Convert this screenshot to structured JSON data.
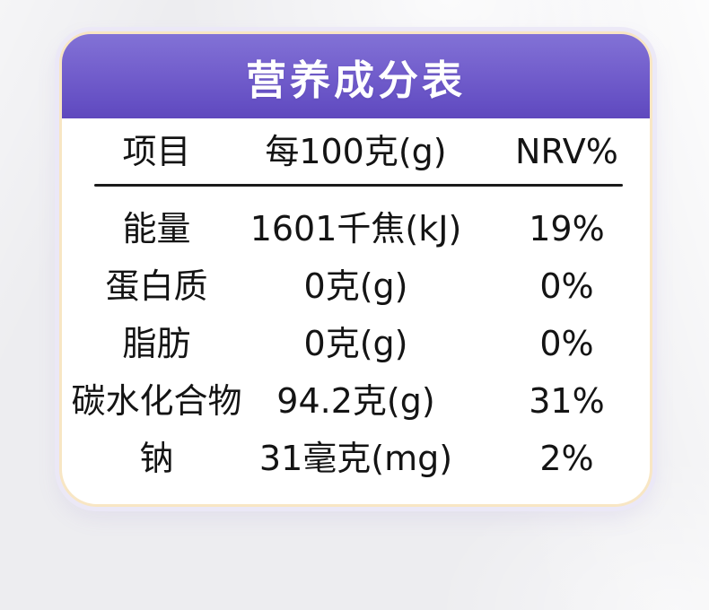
{
  "title": "营养成分表",
  "table": {
    "headers": {
      "item": "项目",
      "per100g": "每100克(g)",
      "nrv": "NRV%"
    },
    "rows": [
      {
        "item": "能量",
        "per100g": "1601千焦(kJ)",
        "nrv": "19%"
      },
      {
        "item": "蛋白质",
        "per100g": "0克(g)",
        "nrv": "0%"
      },
      {
        "item": "脂肪",
        "per100g": "0克(g)",
        "nrv": "0%"
      },
      {
        "item": "碳水化合物",
        "per100g": "94.2克(g)",
        "nrv": "31%"
      },
      {
        "item": "钠",
        "per100g": "31毫克(mg)",
        "nrv": "2%"
      }
    ]
  },
  "colors": {
    "header_gradient_top": "#8272d6",
    "header_gradient_bottom": "#5f48bd",
    "card_border": "#f8e6c4",
    "card_background": "#ffffff",
    "page_background": "#ededf0",
    "text": "#141414",
    "title_text": "#ffffff"
  }
}
